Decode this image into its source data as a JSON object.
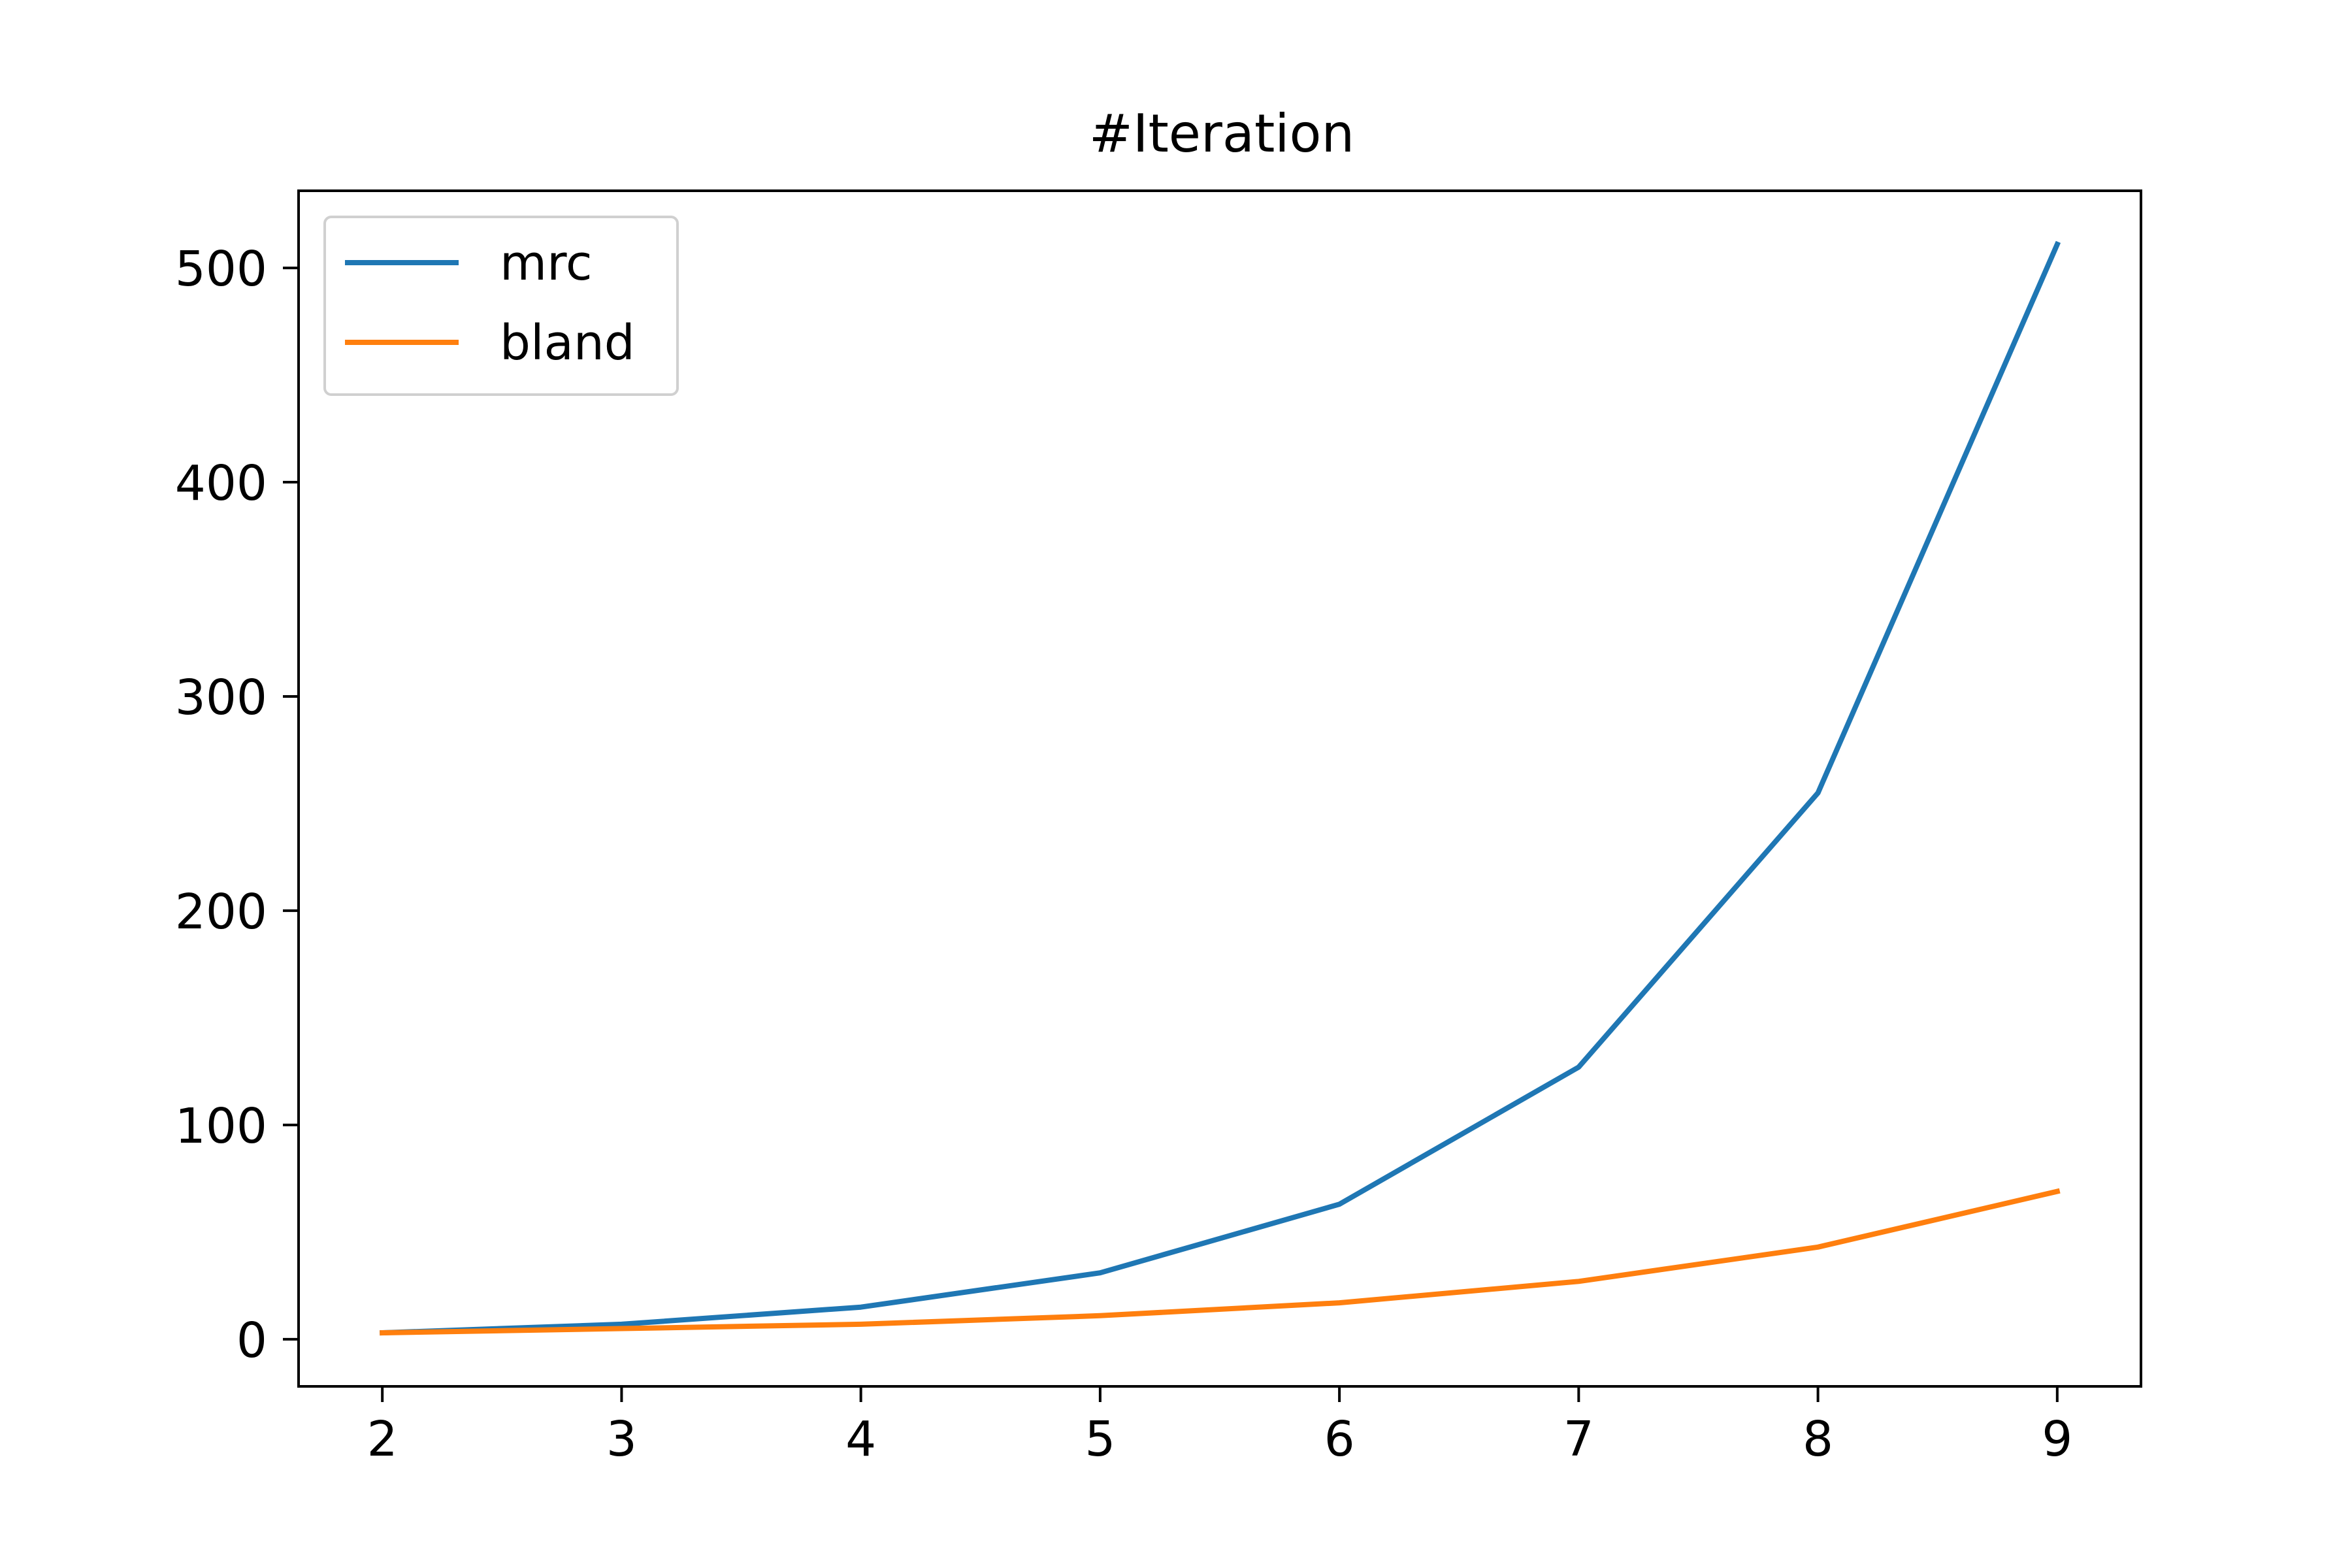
{
  "chart_data": {
    "type": "line",
    "title": "#Iteration",
    "xlabel": "",
    "ylabel": "",
    "x": [
      2,
      3,
      4,
      5,
      6,
      7,
      8,
      9
    ],
    "xlim": [
      1.65,
      9.35
    ],
    "ylim": [
      -22,
      536
    ],
    "xticks": [
      2,
      3,
      4,
      5,
      6,
      7,
      8,
      9
    ],
    "yticks": [
      0,
      100,
      200,
      300,
      400,
      500
    ],
    "grid": false,
    "legend_position": "top-left",
    "series": [
      {
        "name": "mrc",
        "color": "#1f77b4",
        "values": [
          3,
          7,
          15,
          31,
          63,
          127,
          255,
          511
        ]
      },
      {
        "name": "bland",
        "color": "#ff7f0e",
        "values": [
          3,
          5,
          7,
          11,
          17,
          27,
          43,
          69
        ]
      }
    ]
  }
}
